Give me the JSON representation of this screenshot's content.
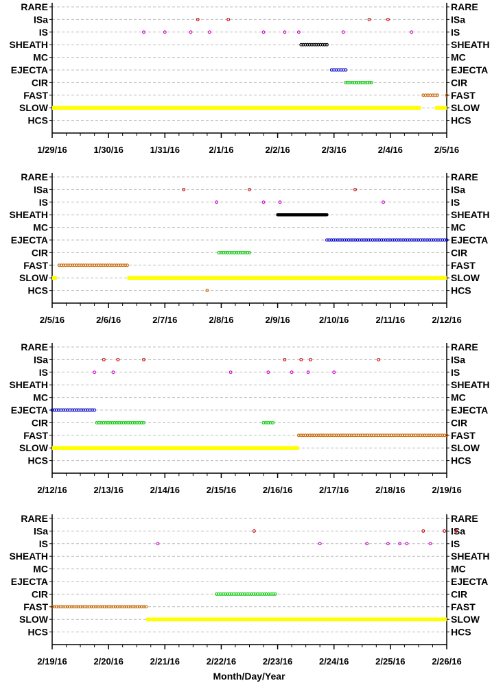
{
  "chart_data": {
    "type": "scatter",
    "xlabel": "Month/Day/Year",
    "categories": [
      "RARE",
      "ISa",
      "IS",
      "SHEATH",
      "MC",
      "EJECTA",
      "CIR",
      "FAST",
      "SLOW",
      "HCS"
    ],
    "category_colors": {
      "ISa": "#cc0000",
      "IS": "#cc00cc",
      "SHEATH": "#000000",
      "EJECTA": "#0000cc",
      "CIR": "#00cc00",
      "FAST": "#cc6600",
      "SLOW": "#ffff00",
      "HCS": "#cc6600"
    },
    "panels": [
      {
        "xlim": [
          "2016-01-29",
          "2016-02-05"
        ],
        "xticks": [
          "1/29/16",
          "1/30/16",
          "1/31/16",
          "2/1/16",
          "2/2/16",
          "2/3/16",
          "2/4/16",
          "2/5/16"
        ],
        "events": [
          {
            "category": "ISa",
            "kind": "points",
            "x": [
              "2016-01-31T14:00",
              "2016-02-01T03:00",
              "2016-02-03T15:00",
              "2016-02-03T23:00"
            ]
          },
          {
            "category": "IS",
            "kind": "points",
            "x": [
              "2016-01-30T15:00",
              "2016-01-31T00:00",
              "2016-01-31T11:00",
              "2016-01-31T19:00",
              "2016-02-01T18:00",
              "2016-02-02T03:00",
              "2016-02-02T09:00",
              "2016-02-03T04:00",
              "2016-02-04T09:00"
            ]
          },
          {
            "category": "SHEATH",
            "kind": "range",
            "start": "2016-02-02T10:00",
            "end": "2016-02-02T21:00"
          },
          {
            "category": "EJECTA",
            "kind": "range",
            "start": "2016-02-02T23:00",
            "end": "2016-02-03T05:00"
          },
          {
            "category": "CIR",
            "kind": "range",
            "start": "2016-02-03T05:00",
            "end": "2016-02-03T16:00"
          },
          {
            "category": "FAST",
            "kind": "range",
            "start": "2016-02-04T14:00",
            "end": "2016-02-04T20:00"
          },
          {
            "category": "FAST",
            "kind": "points",
            "x": [
              "2016-02-05T00:00"
            ]
          },
          {
            "category": "SLOW",
            "kind": "range",
            "start": "2016-01-29T00:00",
            "end": "2016-02-04T13:00"
          },
          {
            "category": "SLOW",
            "kind": "range",
            "start": "2016-02-04T19:00",
            "end": "2016-02-05T00:00"
          }
        ]
      },
      {
        "xlim": [
          "2016-02-05",
          "2016-02-12"
        ],
        "xticks": [
          "2/5/16",
          "2/6/16",
          "2/7/16",
          "2/8/16",
          "2/9/16",
          "2/10/16",
          "2/11/16",
          "2/12/16"
        ],
        "events": [
          {
            "category": "ISa",
            "kind": "points",
            "x": [
              "2016-02-07T08:00",
              "2016-02-08T12:00",
              "2016-02-10T09:00"
            ]
          },
          {
            "category": "IS",
            "kind": "points",
            "x": [
              "2016-02-07T22:00",
              "2016-02-08T18:00",
              "2016-02-09T01:00",
              "2016-02-10T21:00"
            ]
          },
          {
            "category": "SHEATH",
            "kind": "range",
            "start": "2016-02-09T00:00",
            "end": "2016-02-09T21:00"
          },
          {
            "category": "EJECTA",
            "kind": "range",
            "start": "2016-02-09T21:00",
            "end": "2016-02-12T00:00"
          },
          {
            "category": "CIR",
            "kind": "range",
            "start": "2016-02-07T23:00",
            "end": "2016-02-08T12:00"
          },
          {
            "category": "FAST",
            "kind": "range",
            "start": "2016-02-05T03:00",
            "end": "2016-02-06T08:00"
          },
          {
            "category": "SLOW",
            "kind": "range",
            "start": "2016-02-05T00:00",
            "end": "2016-02-05T02:00"
          },
          {
            "category": "SLOW",
            "kind": "range",
            "start": "2016-02-06T08:00",
            "end": "2016-02-12T00:00"
          },
          {
            "category": "HCS",
            "kind": "points",
            "x": [
              "2016-02-07T18:00"
            ]
          }
        ]
      },
      {
        "xlim": [
          "2016-02-12",
          "2016-02-19"
        ],
        "xticks": [
          "2/12/16",
          "2/13/16",
          "2/14/16",
          "2/15/16",
          "2/16/16",
          "2/17/16",
          "2/18/16",
          "2/19/16"
        ],
        "events": [
          {
            "category": "ISa",
            "kind": "points",
            "x": [
              "2016-02-12T22:00",
              "2016-02-13T04:00",
              "2016-02-13T15:00",
              "2016-02-16T03:00",
              "2016-02-16T10:00",
              "2016-02-16T14:00",
              "2016-02-17T19:00"
            ]
          },
          {
            "category": "IS",
            "kind": "points",
            "x": [
              "2016-02-12T18:00",
              "2016-02-13T02:00",
              "2016-02-15T04:00",
              "2016-02-15T20:00",
              "2016-02-16T06:00",
              "2016-02-16T13:00",
              "2016-02-17T00:00"
            ]
          },
          {
            "category": "EJECTA",
            "kind": "range",
            "start": "2016-02-12T00:00",
            "end": "2016-02-12T18:00"
          },
          {
            "category": "CIR",
            "kind": "range",
            "start": "2016-02-12T19:00",
            "end": "2016-02-13T15:00"
          },
          {
            "category": "CIR",
            "kind": "range",
            "start": "2016-02-15T18:00",
            "end": "2016-02-15T22:00"
          },
          {
            "category": "FAST",
            "kind": "range",
            "start": "2016-02-16T09:00",
            "end": "2016-02-19T00:00"
          },
          {
            "category": "SLOW",
            "kind": "range",
            "start": "2016-02-12T00:00",
            "end": "2016-02-16T09:00"
          }
        ]
      },
      {
        "xlim": [
          "2016-02-19",
          "2016-02-26"
        ],
        "xticks": [
          "2/19/16",
          "2/20/16",
          "2/21/16",
          "2/22/16",
          "2/23/16",
          "2/24/16",
          "2/25/16",
          "2/26/16"
        ],
        "events": [
          {
            "category": "ISa",
            "kind": "points",
            "x": [
              "2016-02-22T14:00",
              "2016-02-25T14:00",
              "2016-02-25T23:00",
              "2016-02-26T04:00"
            ]
          },
          {
            "category": "IS",
            "kind": "points",
            "x": [
              "2016-02-20T21:00",
              "2016-02-23T18:00",
              "2016-02-24T14:00",
              "2016-02-24T23:00",
              "2016-02-25T04:00",
              "2016-02-25T07:00",
              "2016-02-25T17:00"
            ]
          },
          {
            "category": "CIR",
            "kind": "range",
            "start": "2016-02-21T22:00",
            "end": "2016-02-22T23:00"
          },
          {
            "category": "FAST",
            "kind": "range",
            "start": "2016-02-19T00:00",
            "end": "2016-02-20T16:00"
          },
          {
            "category": "SLOW",
            "kind": "range",
            "start": "2016-02-20T16:00",
            "end": "2016-02-26T00:00"
          }
        ]
      }
    ]
  }
}
